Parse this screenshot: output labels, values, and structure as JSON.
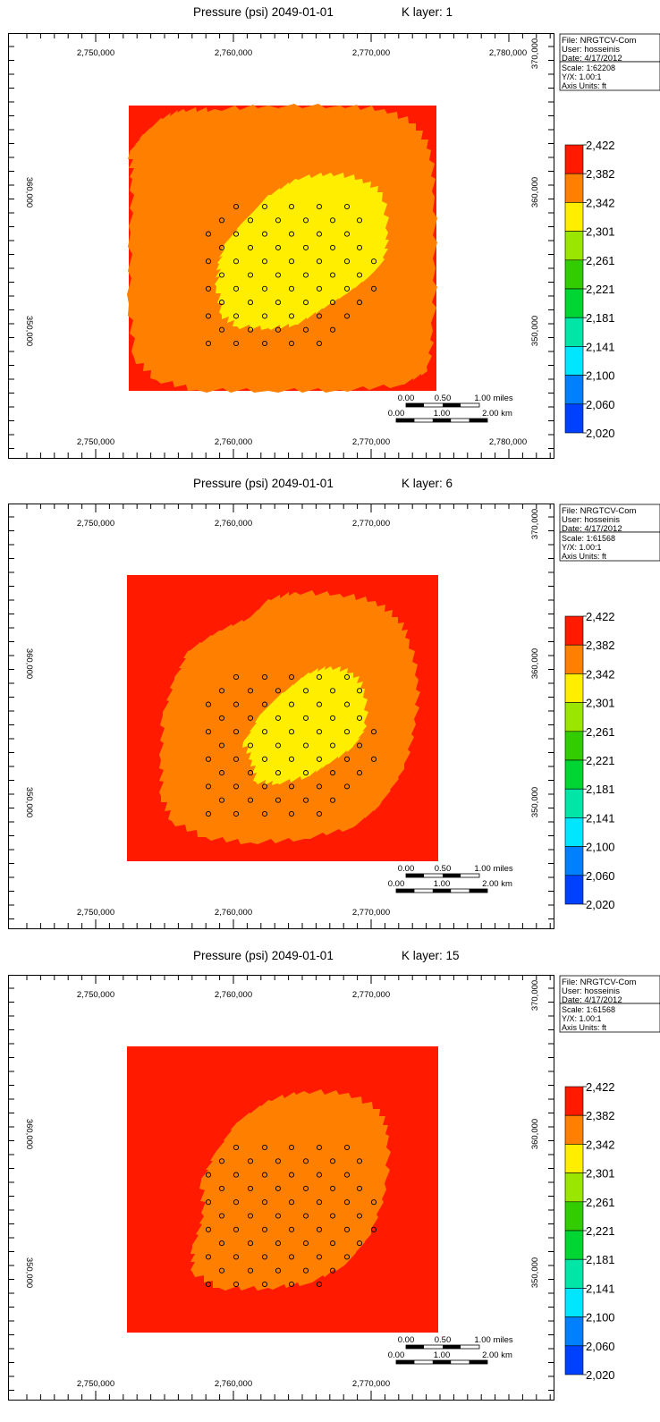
{
  "chart_data": [
    {
      "type": "heatmap",
      "title": "Pressure (psi) 2049-01-01",
      "layer_label": "K layer: 1",
      "x_ticks": [
        "2,750,000",
        "2,760,000",
        "2,770,000",
        "2,780,000"
      ],
      "y_ticks": [
        "370,000",
        "360,000",
        "350,000"
      ],
      "info": {
        "file": "File: NRGTCV-Com",
        "user": "User:  hosseinis",
        "date": "Date: 4/17/2012",
        "scale": "Scale: 1:62208",
        "yx": "Y/X: 1.00:1",
        "units": "Axis Units: ft"
      },
      "scalebar": {
        "miles": [
          "0.00",
          "0.50",
          "1.00 miles"
        ],
        "km": [
          "0.00",
          "1.00",
          "2.00 km"
        ]
      },
      "zones": [
        {
          "name": "2,382-2,422",
          "color": "#ff1a00"
        },
        {
          "name": "2,342-2,382",
          "color": "#ff7f00"
        },
        {
          "name": "2,301-2,342",
          "color": "#ffee00"
        }
      ],
      "wells_count": 57
    },
    {
      "type": "heatmap",
      "title": "Pressure (psi) 2049-01-01",
      "layer_label": "K layer: 6",
      "x_ticks": [
        "2,750,000",
        "2,760,000",
        "2,770,000"
      ],
      "y_ticks": [
        "370,000",
        "360,000",
        "350,000"
      ],
      "info": {
        "file": "File: NRGTCV-Com",
        "user": "User:  hosseinis",
        "date": "Date: 4/17/2012",
        "scale": "Scale: 1:61568",
        "yx": "Y/X: 1.00:1",
        "units": "Axis Units: ft"
      },
      "scalebar": {
        "miles": [
          "0.00",
          "0.50",
          "1.00 miles"
        ],
        "km": [
          "0.00",
          "1.00",
          "2.00 km"
        ]
      },
      "zones": [
        {
          "name": "2,382-2,422",
          "color": "#ff1a00"
        },
        {
          "name": "2,342-2,382",
          "color": "#ff7f00"
        },
        {
          "name": "2,301-2,342",
          "color": "#ffee00"
        }
      ],
      "wells_count": 57
    },
    {
      "type": "heatmap",
      "title": "Pressure (psi) 2049-01-01",
      "layer_label": "K layer: 15",
      "x_ticks": [
        "2,750,000",
        "2,760,000",
        "2,770,000"
      ],
      "y_ticks": [
        "370,000",
        "360,000",
        "350,000"
      ],
      "info": {
        "file": "File: NRGTCV-Com",
        "user": "User:  hosseinis",
        "date": "Date: 4/17/2012",
        "scale": "Scale: 1:61568",
        "yx": "Y/X: 1.00:1",
        "units": "Axis Units: ft"
      },
      "scalebar": {
        "miles": [
          "0.00",
          "0.50",
          "1.00 miles"
        ],
        "km": [
          "0.00",
          "1.00",
          "2.00 km"
        ]
      },
      "zones": [
        {
          "name": "2,382-2,422",
          "color": "#ff1a00"
        },
        {
          "name": "2,342-2,382",
          "color": "#ff7f00"
        }
      ],
      "wells_count": 57
    }
  ],
  "legend": {
    "labels": [
      "2,422",
      "2,382",
      "2,342",
      "2,301",
      "2,261",
      "2,221",
      "2,181",
      "2,141",
      "2,100",
      "2,060",
      "2,020"
    ],
    "colors": [
      "#ff1a00",
      "#ff7f00",
      "#ffee00",
      "#9be600",
      "#33cc00",
      "#00d633",
      "#00e6a6",
      "#00e6ff",
      "#0080ff",
      "#0040ff"
    ]
  }
}
